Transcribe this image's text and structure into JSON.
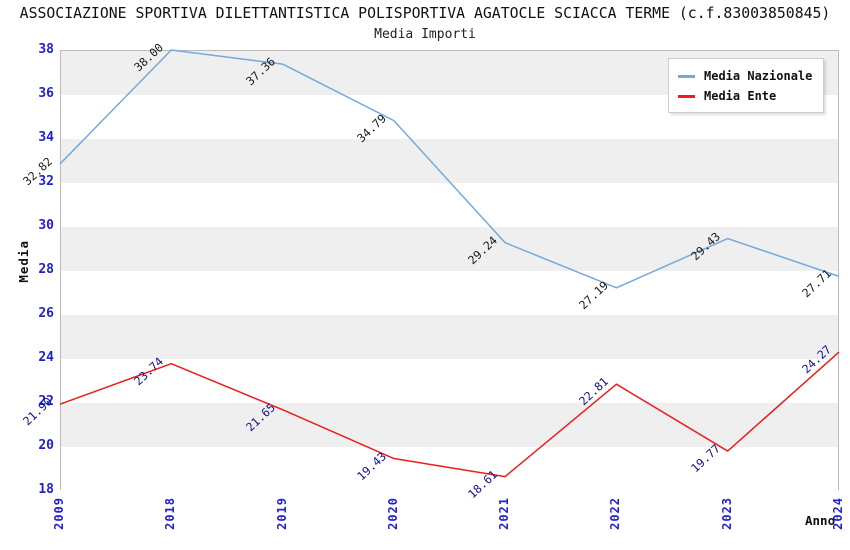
{
  "page": {
    "background": "#ffffff"
  },
  "colors": {
    "tick_blue": "#2222CC",
    "band_gray": "#EFEFEF",
    "band_white": "#FFFFFF",
    "plot_border": "#BBBBBB"
  },
  "chart_data": {
    "type": "line",
    "title": "ASSOCIAZIONE SPORTIVA DILETTANTISTICA POLISPORTIVA AGATOCLE SCIACCA TERME (c.f.83003850845)",
    "subtitle": "Media Importi",
    "xlabel": "Anno",
    "ylabel": "Media",
    "x_categories": [
      "2009",
      "2018",
      "2019",
      "2020",
      "2021",
      "2022",
      "2023",
      "2024"
    ],
    "ylim": [
      18,
      38
    ],
    "ytick_step": 2,
    "grid": "alternating-horizontal-bands",
    "legend_position": "top-right",
    "series": [
      {
        "name": "Media Nazionale",
        "color": "#74A9DC",
        "label_color": "#1A1A1A",
        "values": [
          32.82,
          38.0,
          37.36,
          34.79,
          29.24,
          27.19,
          29.43,
          27.71
        ]
      },
      {
        "name": "Media Ente",
        "color": "#EE1C1C",
        "label_color": "#10108E",
        "values": [
          21.9,
          23.74,
          21.65,
          19.43,
          18.61,
          22.81,
          19.77,
          24.27
        ]
      }
    ]
  }
}
